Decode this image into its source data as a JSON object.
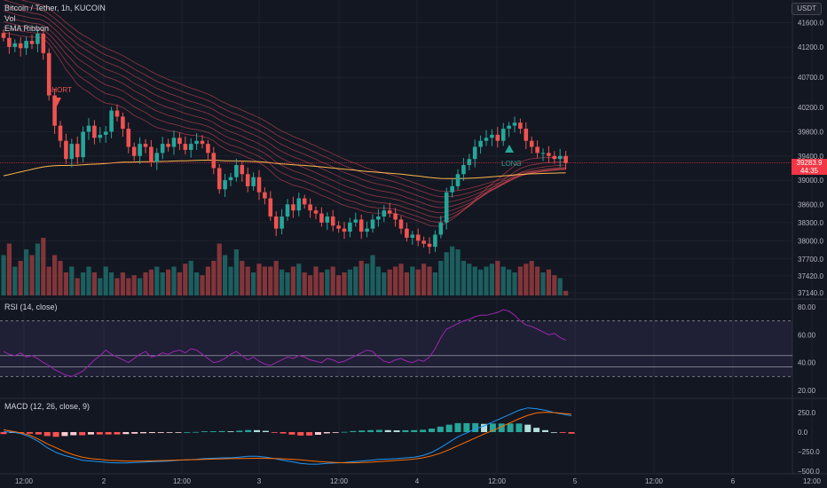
{
  "header": {
    "title": "Bitcoin / Tether, 1h, KUCOIN",
    "vol_label": "Vol",
    "ema_label": "EMA Ribbon"
  },
  "currency_pill": "USDT",
  "price_axis": {
    "labels": [
      "41600.0",
      "41200.0",
      "40700.0",
      "40200.0",
      "39800.0",
      "39400.0",
      "39000.0",
      "38600.0",
      "38300.0",
      "38000.0",
      "37700.0",
      "37420.0",
      "37140.0"
    ],
    "last_price": "39283.9",
    "countdown": "44:35"
  },
  "rsi": {
    "label": "RSI (14, close)",
    "axis_labels": [
      "80.00",
      "60.00",
      "40.00",
      "20.00"
    ],
    "upper": 70,
    "lower": 30,
    "mid": 50
  },
  "macd": {
    "label": "MACD (12, 26, close, 9)",
    "axis_labels": [
      "250.0",
      "0.0",
      "−250.0",
      "−500.0"
    ]
  },
  "time_axis": [
    "12:00",
    "2",
    "12:00",
    "3",
    "12:00",
    "4",
    "12:00",
    "5",
    "12:00",
    "6",
    "12:00"
  ],
  "signals": {
    "short": "SHORT",
    "long": "LONG"
  },
  "colors": {
    "background": "#131722",
    "up": "#26a69a",
    "down": "#ef5350",
    "rsi_line": "#9c27b0",
    "macd_line": "#2196f3",
    "signal_line": "#ff6d00",
    "price_tag": "#f23645"
  },
  "chart_data": {
    "type": "candlestick",
    "symbol": "BTC/USDT",
    "interval": "1h",
    "exchange": "KUCOIN",
    "last_price": 39283.9,
    "price_ylim": [
      37140,
      41800
    ],
    "close": [
      41350,
      41200,
      41260,
      41180,
      41300,
      41250,
      41420,
      41100,
      40400,
      39900,
      39650,
      39350,
      39600,
      39380,
      39800,
      39900,
      39700,
      39750,
      39800,
      40150,
      40050,
      39850,
      39550,
      39400,
      39600,
      39550,
      39300,
      39450,
      39600,
      39550,
      39700,
      39600,
      39500,
      39600,
      39650,
      39600,
      39450,
      39200,
      38850,
      39000,
      39050,
      39250,
      39100,
      38900,
      39050,
      38800,
      38700,
      38400,
      38200,
      38400,
      38600,
      38500,
      38700,
      38600,
      38500,
      38450,
      38300,
      38400,
      38250,
      38200,
      38150,
      38300,
      38350,
      38150,
      38200,
      38350,
      38400,
      38500,
      38450,
      38350,
      38200,
      38050,
      38100,
      38000,
      37950,
      37900,
      38100,
      38300,
      38800,
      38900,
      39100,
      39250,
      39350,
      39550,
      39650,
      39700,
      39750,
      39650,
      39850,
      39900,
      39950,
      39850,
      39650,
      39550,
      39450,
      39450,
      39400,
      39350,
      39400,
      39283.9
    ],
    "volume_rel": [
      0.7,
      0.9,
      0.5,
      0.6,
      0.8,
      0.7,
      0.9,
      1.0,
      0.5,
      0.7,
      0.6,
      0.4,
      0.5,
      0.3,
      0.4,
      0.5,
      0.4,
      0.3,
      0.5,
      0.4,
      0.3,
      0.4,
      0.3,
      0.35,
      0.3,
      0.4,
      0.45,
      0.5,
      0.4,
      0.45,
      0.5,
      0.4,
      0.55,
      0.6,
      0.4,
      0.35,
      0.5,
      0.6,
      0.9,
      0.7,
      0.5,
      0.8,
      0.6,
      0.5,
      0.4,
      0.55,
      0.5,
      0.5,
      0.6,
      0.45,
      0.4,
      0.5,
      0.55,
      0.4,
      0.35,
      0.5,
      0.4,
      0.45,
      0.5,
      0.35,
      0.4,
      0.45,
      0.5,
      0.6,
      0.55,
      0.7,
      0.5,
      0.4,
      0.45,
      0.5,
      0.55,
      0.4,
      0.5,
      0.45,
      0.55,
      0.5,
      0.4,
      0.6,
      0.75,
      0.85,
      0.8,
      0.6,
      0.55,
      0.5,
      0.45,
      0.5,
      0.55,
      0.6,
      0.5,
      0.45,
      0.4,
      0.5,
      0.55,
      0.6,
      0.5,
      0.4,
      0.45,
      0.35,
      0.3,
      0.08
    ],
    "rsi": [
      48,
      46,
      45,
      47,
      44,
      45,
      43,
      40,
      38,
      35,
      33,
      31,
      30,
      32,
      34,
      38,
      42,
      45,
      49,
      46,
      44,
      42,
      40,
      43,
      46,
      48,
      44,
      45,
      47,
      46,
      48,
      49,
      47,
      50,
      49,
      46,
      43,
      40,
      41,
      43,
      46,
      48,
      45,
      42,
      44,
      41,
      39,
      38,
      40,
      42,
      44,
      43,
      45,
      44,
      42,
      41,
      40,
      43,
      42,
      40,
      41,
      43,
      45,
      47,
      49,
      48,
      44,
      41,
      40,
      42,
      43,
      41,
      40,
      42,
      41,
      44,
      50,
      58,
      64,
      66,
      68,
      70,
      71,
      73,
      74,
      74,
      75,
      76,
      78,
      77,
      74,
      70,
      67,
      66,
      64,
      62,
      60,
      61,
      58,
      56
    ],
    "macd_line": [
      5,
      0,
      -20,
      -60,
      -120,
      -200,
      -260,
      -300,
      -330,
      -360,
      -370,
      -380,
      -390,
      -395,
      -395,
      -390,
      -385,
      -380,
      -375,
      -370,
      -360,
      -355,
      -350,
      -340,
      -335,
      -330,
      -330,
      -320,
      -310,
      -310,
      -320,
      -340,
      -360,
      -380,
      -400,
      -410,
      -410,
      -400,
      -395,
      -390,
      -380,
      -370,
      -360,
      -350,
      -345,
      -340,
      -330,
      -320,
      -300,
      -260,
      -200,
      -130,
      -60,
      -10,
      40,
      80,
      130,
      180,
      230,
      280,
      310,
      300,
      280,
      250,
      230,
      210
    ],
    "signal_line": [
      30,
      10,
      -10,
      -40,
      -90,
      -150,
      -200,
      -250,
      -290,
      -320,
      -340,
      -350,
      -360,
      -365,
      -370,
      -370,
      -370,
      -368,
      -365,
      -362,
      -358,
      -355,
      -352,
      -350,
      -346,
      -343,
      -340,
      -338,
      -336,
      -335,
      -336,
      -338,
      -342,
      -348,
      -356,
      -366,
      -376,
      -384,
      -390,
      -393,
      -393,
      -390,
      -385,
      -378,
      -370,
      -362,
      -354,
      -345,
      -330,
      -305,
      -270,
      -225,
      -175,
      -125,
      -75,
      -25,
      20,
      70,
      120,
      170,
      215,
      245,
      255,
      250,
      240,
      230
    ]
  }
}
